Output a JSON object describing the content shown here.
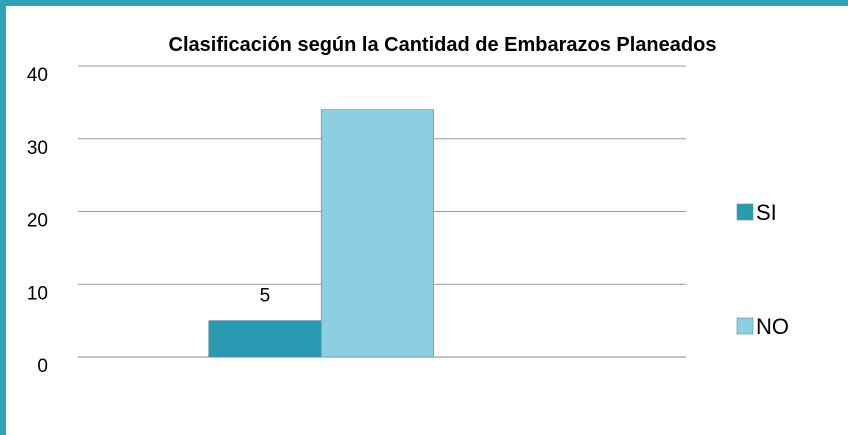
{
  "chart_data": {
    "type": "bar",
    "title": "Clasificación según la Cantidad de Embarazos Planeados",
    "categories": [
      null
    ],
    "series": [
      {
        "name": "SI",
        "color": "#2a9ab3",
        "values": [
          5
        ],
        "value_labels": [
          "5"
        ]
      },
      {
        "name": "NO",
        "color": "#8ccfe0",
        "values": [
          34
        ]
      }
    ],
    "ylim": [
      0,
      40
    ],
    "yticks": [
      0,
      10,
      20,
      30,
      40
    ],
    "grid": true,
    "legend": "right"
  }
}
